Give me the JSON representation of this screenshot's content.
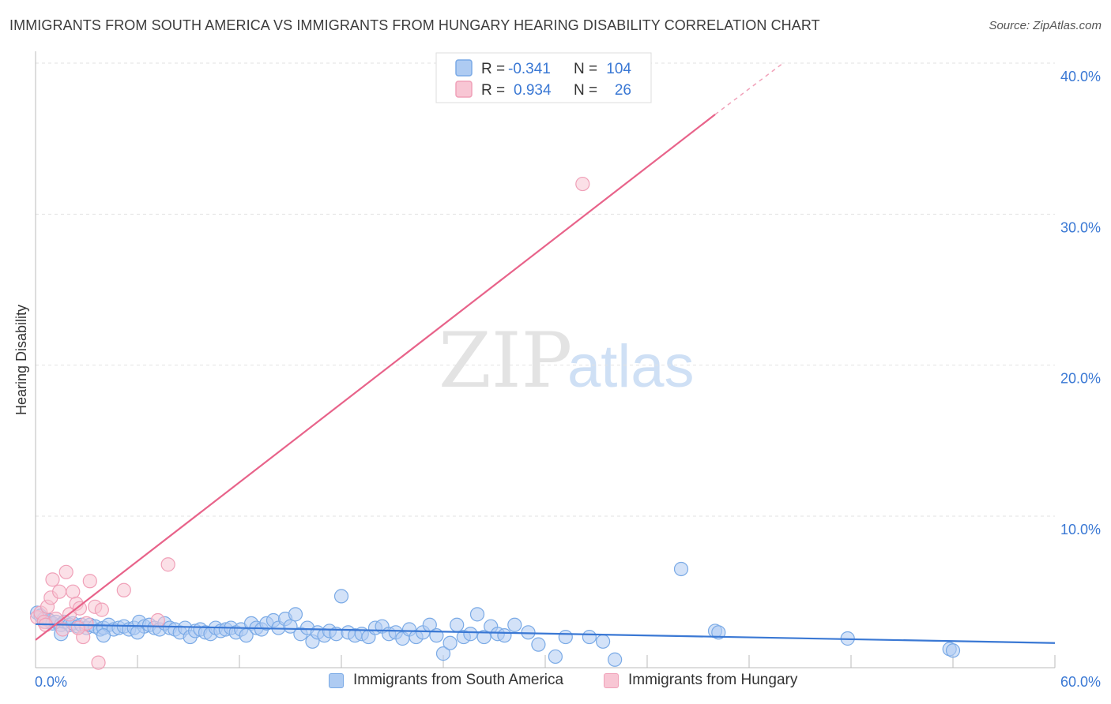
{
  "header": {
    "title": "IMMIGRANTS FROM SOUTH AMERICA VS IMMIGRANTS FROM HUNGARY HEARING DISABILITY CORRELATION CHART",
    "source": "Source: ZipAtlas.com"
  },
  "watermark": {
    "zip": "ZIP",
    "atlas": "atlas"
  },
  "colors": {
    "blue": "#7aaae6",
    "blue_fill": "#aecbf2",
    "blue_line": "#3a78d4",
    "pink": "#f0a0b8",
    "pink_fill": "#f8c6d4",
    "pink_line": "#e8638a",
    "axis_text": "#3a78d4"
  },
  "legend_top": {
    "rows": [
      {
        "r_label": "R =",
        "r_value": "-0.341",
        "n_label": "N =",
        "n_value": "104",
        "series": "blue"
      },
      {
        "r_label": "R =",
        "r_value": "0.934",
        "n_label": "N =",
        "n_value": "26",
        "series": "pink"
      }
    ]
  },
  "legend_bottom": {
    "items": [
      {
        "label": "Immigrants from South America",
        "series": "blue"
      },
      {
        "label": "Immigrants from Hungary",
        "series": "pink"
      }
    ]
  },
  "chart_data": {
    "type": "scatter",
    "title": "IMMIGRANTS FROM SOUTH AMERICA VS IMMIGRANTS FROM HUNGARY HEARING DISABILITY CORRELATION CHART",
    "xlabel": "",
    "ylabel": "Hearing Disability",
    "xlim": [
      0,
      60
    ],
    "ylim": [
      0,
      42
    ],
    "x_tick_labels": [
      {
        "value": 0,
        "label": "0.0%"
      },
      {
        "value": 60,
        "label": "60.0%"
      }
    ],
    "y_tick_labels": [
      {
        "value": 10,
        "label": "10.0%"
      },
      {
        "value": 20,
        "label": "20.0%"
      },
      {
        "value": 30,
        "label": "30.0%"
      },
      {
        "value": 40,
        "label": "40.0%"
      }
    ],
    "grid_y": [
      10,
      20,
      30,
      40
    ],
    "x_minor_ticks": [
      6,
      12,
      18,
      24,
      30,
      36,
      42,
      48,
      54,
      60
    ],
    "series": [
      {
        "name": "Immigrants from South America",
        "color": "blue",
        "R": -0.341,
        "N": 104,
        "trend": {
          "x0": 0,
          "y0": 2.85,
          "x1": 60,
          "y1": 1.6
        },
        "points": [
          [
            0.1,
            3.6
          ],
          [
            0.3,
            3.4
          ],
          [
            0.5,
            3.2
          ],
          [
            0.6,
            3.0
          ],
          [
            0.8,
            3.1
          ],
          [
            1.0,
            2.9
          ],
          [
            1.2,
            3.0
          ],
          [
            1.5,
            2.8
          ],
          [
            1.7,
            3.0
          ],
          [
            2.0,
            2.8
          ],
          [
            2.2,
            2.9
          ],
          [
            2.5,
            2.7
          ],
          [
            2.7,
            2.8
          ],
          [
            3.0,
            2.6
          ],
          [
            3.2,
            2.8
          ],
          [
            3.5,
            2.7
          ],
          [
            3.8,
            2.5
          ],
          [
            4.0,
            2.6
          ],
          [
            4.3,
            2.8
          ],
          [
            4.6,
            2.5
          ],
          [
            4.9,
            2.6
          ],
          [
            5.2,
            2.7
          ],
          [
            5.5,
            2.5
          ],
          [
            5.8,
            2.6
          ],
          [
            6.1,
            3.0
          ],
          [
            6.4,
            2.7
          ],
          [
            6.7,
            2.8
          ],
          [
            7.0,
            2.6
          ],
          [
            7.3,
            2.5
          ],
          [
            7.6,
            2.9
          ],
          [
            7.9,
            2.6
          ],
          [
            8.2,
            2.5
          ],
          [
            8.5,
            2.3
          ],
          [
            8.8,
            2.6
          ],
          [
            9.1,
            2.0
          ],
          [
            9.4,
            2.4
          ],
          [
            9.7,
            2.5
          ],
          [
            10.0,
            2.3
          ],
          [
            10.3,
            2.2
          ],
          [
            10.6,
            2.6
          ],
          [
            10.9,
            2.4
          ],
          [
            11.2,
            2.5
          ],
          [
            11.5,
            2.6
          ],
          [
            11.8,
            2.3
          ],
          [
            12.1,
            2.5
          ],
          [
            12.4,
            2.1
          ],
          [
            12.7,
            2.9
          ],
          [
            13.0,
            2.6
          ],
          [
            13.3,
            2.5
          ],
          [
            13.6,
            2.9
          ],
          [
            14.0,
            3.1
          ],
          [
            14.3,
            2.6
          ],
          [
            14.7,
            3.2
          ],
          [
            15.0,
            2.7
          ],
          [
            15.3,
            3.5
          ],
          [
            15.6,
            2.2
          ],
          [
            16.0,
            2.6
          ],
          [
            16.3,
            1.7
          ],
          [
            16.6,
            2.3
          ],
          [
            17.0,
            2.1
          ],
          [
            17.3,
            2.4
          ],
          [
            17.7,
            2.2
          ],
          [
            18.0,
            4.7
          ],
          [
            18.4,
            2.3
          ],
          [
            18.8,
            2.1
          ],
          [
            19.2,
            2.2
          ],
          [
            19.6,
            2.0
          ],
          [
            20.0,
            2.6
          ],
          [
            20.4,
            2.7
          ],
          [
            20.8,
            2.2
          ],
          [
            21.2,
            2.3
          ],
          [
            21.6,
            1.9
          ],
          [
            22.0,
            2.5
          ],
          [
            22.4,
            2.0
          ],
          [
            22.8,
            2.3
          ],
          [
            23.2,
            2.8
          ],
          [
            23.6,
            2.1
          ],
          [
            24.0,
            0.9
          ],
          [
            24.4,
            1.6
          ],
          [
            24.8,
            2.8
          ],
          [
            25.2,
            2.0
          ],
          [
            25.6,
            2.2
          ],
          [
            26.0,
            3.5
          ],
          [
            26.4,
            2.0
          ],
          [
            26.8,
            2.7
          ],
          [
            27.2,
            2.2
          ],
          [
            27.6,
            2.1
          ],
          [
            28.2,
            2.8
          ],
          [
            29.0,
            2.3
          ],
          [
            29.6,
            1.5
          ],
          [
            30.6,
            0.7
          ],
          [
            31.2,
            2.0
          ],
          [
            32.6,
            2.0
          ],
          [
            33.4,
            1.7
          ],
          [
            34.1,
            0.5
          ],
          [
            38.0,
            6.5
          ],
          [
            40.0,
            2.4
          ],
          [
            40.2,
            2.3
          ],
          [
            47.8,
            1.9
          ],
          [
            53.8,
            1.2
          ],
          [
            54.0,
            1.1
          ],
          [
            1.5,
            2.2
          ],
          [
            4.0,
            2.1
          ],
          [
            6.0,
            2.3
          ]
        ]
      },
      {
        "name": "Immigrants from Hungary",
        "color": "pink",
        "R": 0.934,
        "N": 26,
        "trend": {
          "x0": 0,
          "y0": 1.8,
          "x1": 40,
          "y1": 36.6
        },
        "trend_dashed": {
          "x0": 40,
          "y0": 36.6,
          "x1": 44,
          "y1": 40.0
        },
        "points": [
          [
            0.1,
            3.3
          ],
          [
            0.3,
            3.6
          ],
          [
            0.5,
            3.0
          ],
          [
            0.7,
            4.0
          ],
          [
            0.9,
            4.6
          ],
          [
            1.0,
            5.8
          ],
          [
            1.2,
            3.2
          ],
          [
            1.4,
            5.0
          ],
          [
            1.6,
            2.5
          ],
          [
            1.8,
            6.3
          ],
          [
            2.0,
            3.5
          ],
          [
            2.2,
            5.0
          ],
          [
            2.4,
            4.2
          ],
          [
            2.6,
            3.9
          ],
          [
            2.8,
            2.0
          ],
          [
            3.0,
            2.9
          ],
          [
            3.2,
            5.7
          ],
          [
            3.5,
            4.0
          ],
          [
            3.7,
            0.3
          ],
          [
            3.9,
            3.8
          ],
          [
            5.2,
            5.1
          ],
          [
            7.2,
            3.1
          ],
          [
            7.8,
            6.8
          ],
          [
            32.2,
            32.0
          ],
          [
            0.6,
            2.8
          ],
          [
            2.5,
            2.6
          ]
        ]
      }
    ]
  }
}
